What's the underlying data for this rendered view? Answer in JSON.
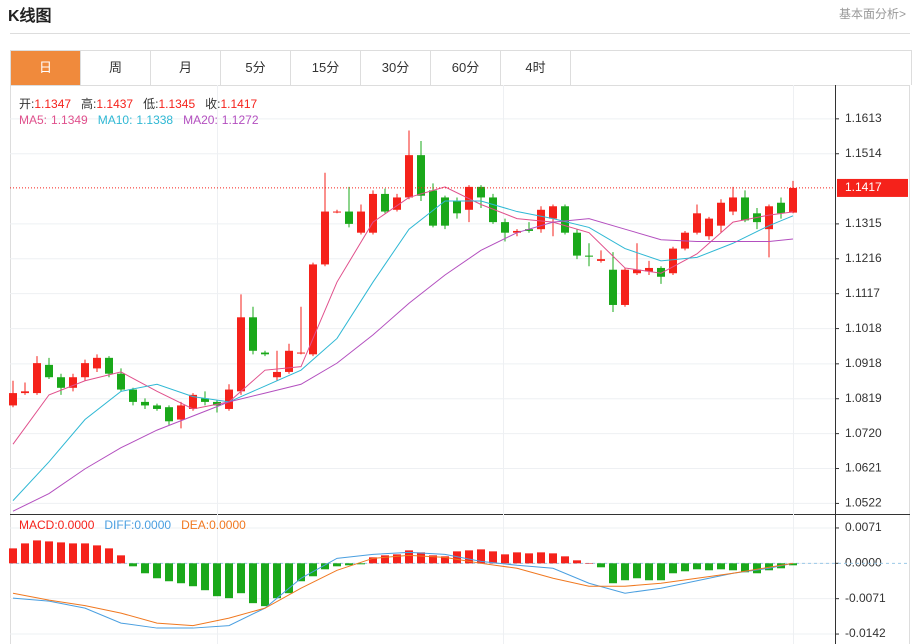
{
  "header": {
    "title": "K线图",
    "link": "基本面分析>"
  },
  "tabs": {
    "items": [
      "日",
      "周",
      "月",
      "5分",
      "15分",
      "30分",
      "60分",
      "4时"
    ],
    "active": 0
  },
  "chart_data": [
    {
      "type": "candlestick",
      "info_labels": [
        "开:",
        "高:",
        "低:",
        "收:"
      ],
      "up_color": "#f5221b",
      "down_color": "#1aa81a",
      "open": [
        1.08,
        1.0835,
        1.0835,
        1.0915,
        1.088,
        1.085,
        1.088,
        1.0905,
        1.0935,
        1.089,
        1.0845,
        1.081,
        1.08,
        1.0795,
        1.076,
        1.079,
        1.082,
        1.081,
        1.079,
        1.084,
        1.105,
        1.095,
        1.088,
        1.0895,
        1.095,
        1.0945,
        1.12,
        1.1348,
        1.135,
        1.129,
        1.129,
        1.14,
        1.1355,
        1.139,
        1.151,
        1.141,
        1.139,
        1.138,
        1.1355,
        1.142,
        1.139,
        1.132,
        1.129,
        1.13,
        1.13,
        1.133,
        1.1365,
        1.129,
        1.1225,
        1.121,
        1.1185,
        1.1085,
        1.1175,
        1.118,
        1.119,
        1.1175,
        1.1245,
        1.129,
        1.128,
        1.131,
        1.135,
        1.139,
        1.1345,
        1.13,
        1.1375,
        1.1347
      ],
      "high": [
        1.087,
        1.0865,
        1.094,
        1.0935,
        1.089,
        1.089,
        1.093,
        1.0945,
        1.094,
        1.0905,
        1.085,
        1.082,
        1.0805,
        1.08,
        1.081,
        1.0835,
        1.084,
        1.0815,
        1.086,
        1.1115,
        1.108,
        1.0955,
        1.0955,
        1.0975,
        1.108,
        1.1205,
        1.146,
        1.1355,
        1.142,
        1.137,
        1.141,
        1.1415,
        1.14,
        1.158,
        1.155,
        1.143,
        1.1395,
        1.139,
        1.1425,
        1.1425,
        1.14,
        1.133,
        1.13,
        1.132,
        1.1365,
        1.137,
        1.137,
        1.13,
        1.126,
        1.124,
        1.1235,
        1.119,
        1.126,
        1.121,
        1.1195,
        1.125,
        1.1295,
        1.137,
        1.1335,
        1.1385,
        1.142,
        1.141,
        1.136,
        1.137,
        1.139,
        1.1437
      ],
      "low": [
        1.0795,
        1.083,
        1.083,
        1.0875,
        1.083,
        1.084,
        1.087,
        1.0895,
        1.088,
        1.084,
        1.08,
        1.079,
        1.0785,
        1.0745,
        1.0735,
        1.0785,
        1.08,
        1.078,
        1.0785,
        1.083,
        1.0945,
        1.094,
        1.087,
        1.089,
        1.0945,
        1.094,
        1.1195,
        1.1345,
        1.1305,
        1.1285,
        1.1285,
        1.1345,
        1.135,
        1.1385,
        1.138,
        1.1305,
        1.13,
        1.133,
        1.132,
        1.136,
        1.1315,
        1.1265,
        1.128,
        1.129,
        1.129,
        1.128,
        1.1285,
        1.1215,
        1.1195,
        1.1205,
        1.1065,
        1.108,
        1.117,
        1.117,
        1.1145,
        1.117,
        1.124,
        1.1285,
        1.127,
        1.129,
        1.134,
        1.132,
        1.13,
        1.122,
        1.133,
        1.1345
      ],
      "close": [
        1.0835,
        1.084,
        1.092,
        1.088,
        1.085,
        1.088,
        1.092,
        1.0935,
        1.089,
        1.0845,
        1.081,
        1.08,
        1.079,
        1.0755,
        1.08,
        1.083,
        1.081,
        1.08,
        1.0845,
        1.105,
        1.0955,
        1.0945,
        1.0895,
        1.0955,
        1.095,
        1.12,
        1.135,
        1.135,
        1.1315,
        1.135,
        1.14,
        1.135,
        1.139,
        1.151,
        1.1395,
        1.131,
        1.131,
        1.1345,
        1.142,
        1.139,
        1.132,
        1.129,
        1.1295,
        1.1295,
        1.1355,
        1.1365,
        1.129,
        1.1225,
        1.1222,
        1.1215,
        1.1085,
        1.1185,
        1.1185,
        1.119,
        1.1165,
        1.1245,
        1.129,
        1.1345,
        1.133,
        1.1375,
        1.139,
        1.1325,
        1.132,
        1.1365,
        1.1345,
        1.1417
      ],
      "series": [
        {
          "name": "MA5:",
          "color": "#e0508c",
          "x": [
            0,
            3,
            6,
            9,
            12,
            15,
            18,
            21,
            24,
            27,
            30,
            33,
            36,
            39,
            42,
            45,
            48,
            51,
            54,
            57,
            60,
            63,
            65
          ],
          "values": [
            1.069,
            1.083,
            1.087,
            1.0895,
            1.084,
            1.079,
            1.081,
            1.09,
            1.091,
            1.115,
            1.132,
            1.139,
            1.142,
            1.137,
            1.133,
            1.132,
            1.129,
            1.119,
            1.1175,
            1.123,
            1.132,
            1.134,
            1.1349
          ]
        },
        {
          "name": "MA10:",
          "color": "#2fb8d4",
          "x": [
            0,
            3,
            6,
            9,
            12,
            15,
            18,
            21,
            24,
            27,
            30,
            33,
            36,
            39,
            42,
            45,
            48,
            51,
            54,
            57,
            60,
            63,
            65
          ],
          "values": [
            1.053,
            1.064,
            1.076,
            1.084,
            1.086,
            1.0825,
            1.081,
            1.0855,
            1.09,
            1.099,
            1.115,
            1.13,
            1.138,
            1.138,
            1.135,
            1.133,
            1.1305,
            1.1245,
            1.121,
            1.122,
            1.126,
            1.131,
            1.1338
          ]
        },
        {
          "name": "MA20:",
          "color": "#b34fbf",
          "x": [
            0,
            3,
            6,
            9,
            12,
            15,
            18,
            21,
            24,
            27,
            30,
            33,
            36,
            39,
            42,
            45,
            48,
            51,
            54,
            57,
            60,
            63,
            65
          ],
          "values": [
            1.05,
            1.055,
            1.062,
            1.068,
            1.073,
            1.077,
            1.081,
            1.0835,
            1.086,
            1.092,
            1.1,
            1.109,
            1.117,
            1.124,
            1.129,
            1.132,
            1.133,
            1.13,
            1.127,
            1.1265,
            1.1265,
            1.1265,
            1.1272
          ]
        }
      ],
      "last_price": 1.1417,
      "ylim": [
        1.0492,
        1.1709
      ],
      "yticks": [
        1.1613,
        1.1514,
        1.1315,
        1.1216,
        1.1117,
        1.1018,
        1.0918,
        1.0819,
        {
          "value": 1.072,
          "label": "1.0720"
        },
        1.0621,
        1.0522
      ],
      "grid": true
    },
    {
      "type": "macd",
      "readout": {
        "names": [
          "MACD:",
          "DIFF:",
          "DEA:"
        ],
        "values": [
          0,
          0,
          0
        ],
        "value_labels": [
          "0.0000",
          "0.0000",
          "0.0000"
        ]
      },
      "histogram": {
        "up_color": "#f5221b",
        "down_color": "#1aa81a",
        "values": [
          0.003,
          0.004,
          0.0046,
          0.0044,
          0.0042,
          0.004,
          0.004,
          0.0036,
          0.003,
          0.0016,
          -0.0006,
          -0.002,
          -0.003,
          -0.0036,
          -0.004,
          -0.0046,
          -0.0054,
          -0.0066,
          -0.007,
          -0.006,
          -0.008,
          -0.0086,
          -0.007,
          -0.006,
          -0.0036,
          -0.0026,
          -0.0012,
          -0.0006,
          -0.0004,
          -0.0002,
          0.0012,
          0.0016,
          0.0018,
          0.0026,
          0.0022,
          0.0016,
          0.0014,
          0.0024,
          0.0026,
          0.0028,
          0.0024,
          0.0018,
          0.0022,
          0.002,
          0.0022,
          0.002,
          0.0014,
          0.0006,
          0.0,
          -0.0008,
          -0.004,
          -0.0034,
          -0.003,
          -0.0034,
          -0.0034,
          -0.002,
          -0.0016,
          -0.0012,
          -0.0014,
          -0.0012,
          -0.0014,
          -0.0018,
          -0.002,
          -0.0014,
          -0.001,
          -0.0004
        ]
      },
      "series": [
        {
          "name": "DIFF:",
          "color": "#4a9fe0",
          "x": [
            0,
            3,
            6,
            9,
            12,
            15,
            18,
            21,
            24,
            27,
            30,
            33,
            36,
            39,
            42,
            45,
            48,
            51,
            54,
            57,
            60,
            63,
            65
          ],
          "values": [
            -0.007,
            -0.0076,
            -0.009,
            -0.012,
            -0.013,
            -0.013,
            -0.0125,
            -0.009,
            -0.003,
            0.001,
            0.0018,
            0.0022,
            0.0018,
            0.0004,
            -0.0004,
            -0.001,
            -0.004,
            -0.006,
            -0.005,
            -0.0035,
            -0.002,
            -0.001,
            0.0
          ]
        },
        {
          "name": "DEA:",
          "color": "#f07820",
          "x": [
            0,
            3,
            6,
            9,
            12,
            15,
            18,
            21,
            24,
            27,
            30,
            33,
            36,
            39,
            42,
            45,
            48,
            51,
            54,
            57,
            60,
            63,
            65
          ],
          "values": [
            -0.006,
            -0.0074,
            -0.0085,
            -0.01,
            -0.012,
            -0.0125,
            -0.011,
            -0.009,
            -0.005,
            -0.0014,
            0.001,
            0.0016,
            0.0012,
            0.0,
            -0.001,
            -0.003,
            -0.0046,
            -0.0046,
            -0.004,
            -0.003,
            -0.002,
            -0.0008,
            0.0
          ]
        }
      ],
      "ylim": [
        -0.0162,
        0.0095
      ],
      "yticks": [
        0.0071,
        {
          "value": 0,
          "label": "0.0000"
        },
        -0.0071,
        -0.0142
      ]
    }
  ]
}
